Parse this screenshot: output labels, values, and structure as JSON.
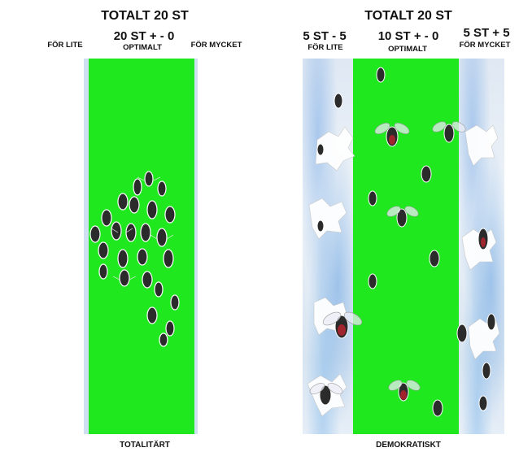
{
  "left": {
    "total": "TOTALT 20 ST",
    "too_few_label": "FÖR LITE",
    "optimal_count": "20 ST  + - 0",
    "optimal_label": "OPTIMALT",
    "too_much_label": "FÖR MYCKET",
    "caption": "TOTALITÄRT"
  },
  "right": {
    "total": "TOTALT 20 ST",
    "too_few_count": "5 ST - 5",
    "too_few_label": "FÖR LITE",
    "optimal_count": "10 ST  + - 0",
    "optimal_label": "OPTIMALT",
    "too_much_count": "5 ST + 5",
    "too_much_label": "FÖR MYCKET",
    "caption": "DEMOKRATISKT"
  },
  "colors": {
    "optimal_zone": "#1fe81f",
    "water": "#a9c9ec",
    "insect": "#2b2b2b"
  }
}
